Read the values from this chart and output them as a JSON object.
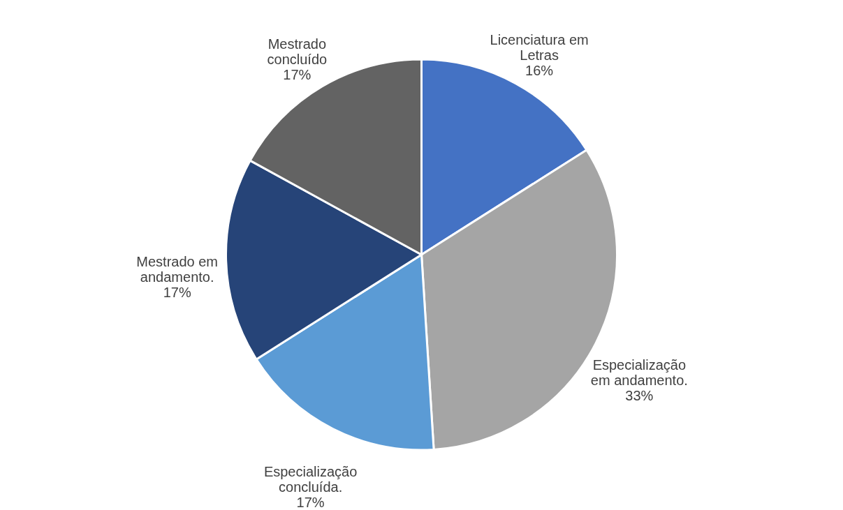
{
  "chart_data": {
    "type": "pie",
    "categories": [
      "Licenciatura em Letras",
      "Especialização em andamento.",
      "Especialização concluída.",
      "Mestrado em andamento.",
      "Mestrado concluído"
    ],
    "values": [
      16,
      33,
      17,
      17,
      17
    ],
    "value_labels": [
      "16%",
      "33%",
      "17%",
      "17%",
      "17%"
    ],
    "colors": [
      "#4472c4",
      "#a5a5a5",
      "#5b9bd5",
      "#264478",
      "#636363"
    ],
    "legend": false
  }
}
